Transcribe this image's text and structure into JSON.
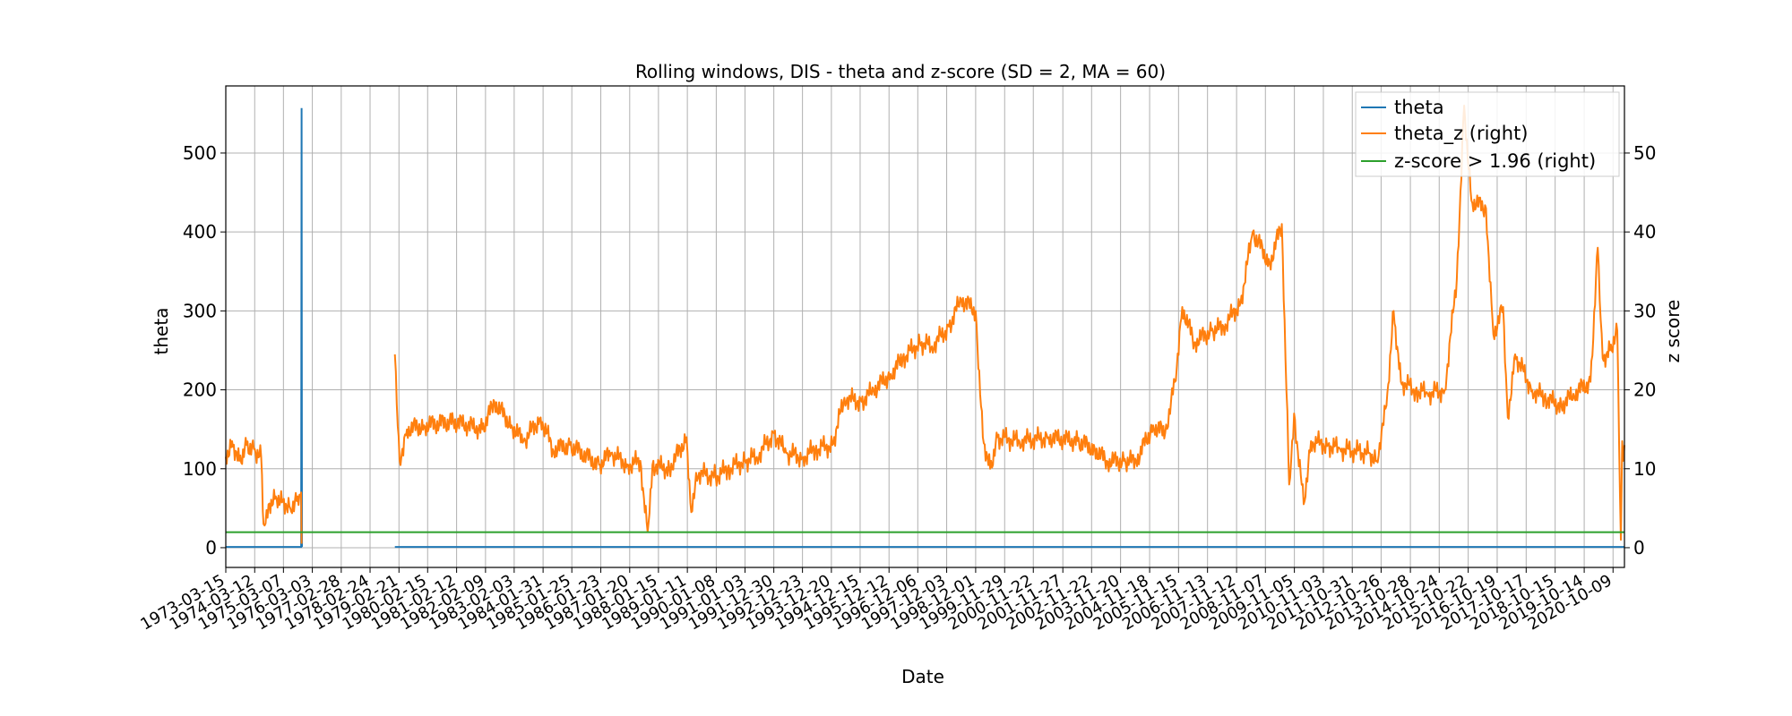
{
  "chart_data": {
    "type": "line",
    "title": "Rolling windows, DIS - theta and z-score (SD = 2, MA = 60)",
    "xlabel": "Date",
    "ylabel": "theta",
    "y2label": "z score",
    "ylim": [
      -25,
      585
    ],
    "y2lim": [
      -2.5,
      58.5
    ],
    "yticks": [
      0,
      100,
      200,
      300,
      400,
      500
    ],
    "y2ticks": [
      0,
      10,
      20,
      30,
      40,
      50
    ],
    "xlim": [
      "1973-03-15",
      "2021-03-01"
    ],
    "grid": true,
    "legend_position": "top-right",
    "xticks": [
      "1973-03-15",
      "1974-03-12",
      "1975-03-07",
      "1976-03-03",
      "1977-02-28",
      "1978-02-24",
      "1979-02-21",
      "1980-02-15",
      "1981-02-12",
      "1982-02-09",
      "1983-02-03",
      "1984-01-31",
      "1985-01-25",
      "1986-01-23",
      "1987-01-20",
      "1988-01-15",
      "1989-01-11",
      "1990-01-08",
      "1991-01-03",
      "1991-12-30",
      "1992-12-23",
      "1993-12-20",
      "1994-12-15",
      "1995-12-12",
      "1996-12-06",
      "1997-12-03",
      "1998-12-01",
      "1999-11-29",
      "2000-11-22",
      "2001-11-27",
      "2002-11-22",
      "2003-11-20",
      "2004-11-18",
      "2005-11-15",
      "2006-11-13",
      "2007-11-12",
      "2008-11-07",
      "2009-11-05",
      "2010-11-03",
      "2011-10-31",
      "2012-10-26",
      "2013-10-28",
      "2014-10-24",
      "2015-10-22",
      "2016-10-19",
      "2017-10-17",
      "2018-10-15",
      "2019-10-14",
      "2020-10-09"
    ],
    "series": [
      {
        "name": "theta",
        "color": "#1f77b4",
        "axis": "left",
        "points": [
          [
            "1973-03-15",
            1
          ],
          [
            "1975-10-15",
            1
          ],
          [
            "1975-10-20",
            557
          ],
          [
            "1975-10-25",
            1
          ],
          [
            "1979-01-01",
            1
          ],
          [
            "2021-03-01",
            1
          ]
        ],
        "gap": [
          "1975-10-25",
          "1979-01-01"
        ]
      },
      {
        "name": "theta_z (right)",
        "color": "#ff7f0e",
        "axis": "right",
        "segments": [
          [
            [
              "1973-03-15",
              11.5
            ],
            [
              "1973-06-01",
              13.5
            ],
            [
              "1973-09-01",
              11.0
            ],
            [
              "1973-12-01",
              13.0
            ],
            [
              "1974-03-01",
              12.5
            ],
            [
              "1974-06-01",
              11.5
            ],
            [
              "1974-07-01",
              3.0
            ],
            [
              "1974-09-01",
              5.5
            ],
            [
              "1974-12-01",
              6.5
            ],
            [
              "1975-03-01",
              6.0
            ],
            [
              "1975-06-01",
              5.0
            ],
            [
              "1975-09-01",
              6.5
            ],
            [
              "1975-10-15",
              7.0
            ],
            [
              "1975-10-20",
              0.5
            ]
          ],
          [
            [
              "1979-01-01",
              24.5
            ],
            [
              "1979-03-01",
              11.0
            ],
            [
              "1979-06-01",
              15.0
            ],
            [
              "1980-01-01",
              15.5
            ],
            [
              "1981-01-01",
              16.0
            ],
            [
              "1982-01-01",
              15.0
            ],
            [
              "1982-06-01",
              18.5
            ],
            [
              "1983-01-01",
              15.5
            ],
            [
              "1983-06-01",
              13.5
            ],
            [
              "1984-01-01",
              16.5
            ],
            [
              "1984-06-01",
              12.5
            ],
            [
              "1985-01-01",
              13.0
            ],
            [
              "1986-01-01",
              10.5
            ],
            [
              "1986-06-01",
              12.0
            ],
            [
              "1987-01-01",
              10.5
            ],
            [
              "1987-06-01",
              11.0
            ],
            [
              "1987-09-01",
              2.0
            ],
            [
              "1987-11-01",
              10.5
            ],
            [
              "1988-06-01",
              10.0
            ],
            [
              "1989-01-01",
              14.0
            ],
            [
              "1989-03-01",
              4.5
            ],
            [
              "1989-05-01",
              9.5
            ],
            [
              "1990-01-01",
              9.0
            ],
            [
              "1990-06-01",
              10.0
            ],
            [
              "1991-01-01",
              11.0
            ],
            [
              "1991-06-01",
              11.5
            ],
            [
              "1992-01-01",
              14.5
            ],
            [
              "1992-06-01",
              12.0
            ],
            [
              "1993-01-01",
              11.5
            ],
            [
              "1993-06-01",
              12.5
            ],
            [
              "1994-01-01",
              13.0
            ],
            [
              "1994-06-01",
              19.0
            ],
            [
              "1995-01-01",
              18.5
            ],
            [
              "1995-06-01",
              20.0
            ],
            [
              "1996-01-01",
              22.0
            ],
            [
              "1996-06-01",
              24.0
            ],
            [
              "1997-01-01",
              26.0
            ],
            [
              "1997-06-01",
              25.5
            ],
            [
              "1998-01-01",
              28.0
            ],
            [
              "1998-06-01",
              31.5
            ],
            [
              "1998-12-01",
              30.0
            ],
            [
              "1999-03-01",
              14.0
            ],
            [
              "1999-06-01",
              10.0
            ],
            [
              "1999-09-01",
              14.0
            ],
            [
              "2000-06-01",
              13.5
            ],
            [
              "2001-06-01",
              14.0
            ],
            [
              "2002-06-01",
              13.5
            ],
            [
              "2003-01-01",
              12.5
            ],
            [
              "2003-06-01",
              11.0
            ],
            [
              "2004-01-01",
              11.0
            ],
            [
              "2004-06-01",
              11.0
            ],
            [
              "2005-01-01",
              15.5
            ],
            [
              "2005-06-01",
              14.5
            ],
            [
              "2005-10-01",
              21.0
            ],
            [
              "2006-01-01",
              30.5
            ],
            [
              "2006-06-01",
              26.0
            ],
            [
              "2007-01-01",
              27.5
            ],
            [
              "2007-06-01",
              28.0
            ],
            [
              "2008-01-01",
              31.0
            ],
            [
              "2008-06-01",
              40.0
            ],
            [
              "2009-01-01",
              36.0
            ],
            [
              "2009-06-01",
              41.0
            ],
            [
              "2009-09-01",
              8.0
            ],
            [
              "2009-11-01",
              17.0
            ],
            [
              "2010-03-01",
              5.5
            ],
            [
              "2010-06-01",
              13.5
            ],
            [
              "2011-01-01",
              13.0
            ],
            [
              "2011-06-01",
              12.5
            ],
            [
              "2012-06-01",
              12.0
            ],
            [
              "2012-09-01",
              11.0
            ],
            [
              "2013-01-01",
              18.0
            ],
            [
              "2013-04-01",
              30.0
            ],
            [
              "2013-07-01",
              21.0
            ],
            [
              "2014-01-01",
              20.0
            ],
            [
              "2014-06-01",
              19.5
            ],
            [
              "2015-01-01",
              20.0
            ],
            [
              "2015-06-01",
              34.0
            ],
            [
              "2015-09-01",
              56.0
            ],
            [
              "2015-12-01",
              44.0
            ],
            [
              "2016-06-01",
              43.0
            ],
            [
              "2016-09-01",
              27.0
            ],
            [
              "2017-01-01",
              30.5
            ],
            [
              "2017-03-01",
              16.5
            ],
            [
              "2017-06-01",
              24.5
            ],
            [
              "2018-01-01",
              20.0
            ],
            [
              "2018-06-01",
              19.0
            ],
            [
              "2019-01-01",
              18.0
            ],
            [
              "2019-06-01",
              19.5
            ],
            [
              "2020-01-01",
              21.0
            ],
            [
              "2020-04-01",
              38.0
            ],
            [
              "2020-06-01",
              24.0
            ],
            [
              "2020-09-01",
              25.0
            ],
            [
              "2020-12-01",
              27.5
            ],
            [
              "2021-01-15",
              1.0
            ],
            [
              "2021-02-01",
              13.5
            ],
            [
              "2021-02-15",
              11.0
            ],
            [
              "2021-03-01",
              13.0
            ]
          ]
        ]
      },
      {
        "name": "z-score > 1.96 (right)",
        "color": "#2ca02c",
        "axis": "right",
        "constant": 1.96
      }
    ]
  }
}
